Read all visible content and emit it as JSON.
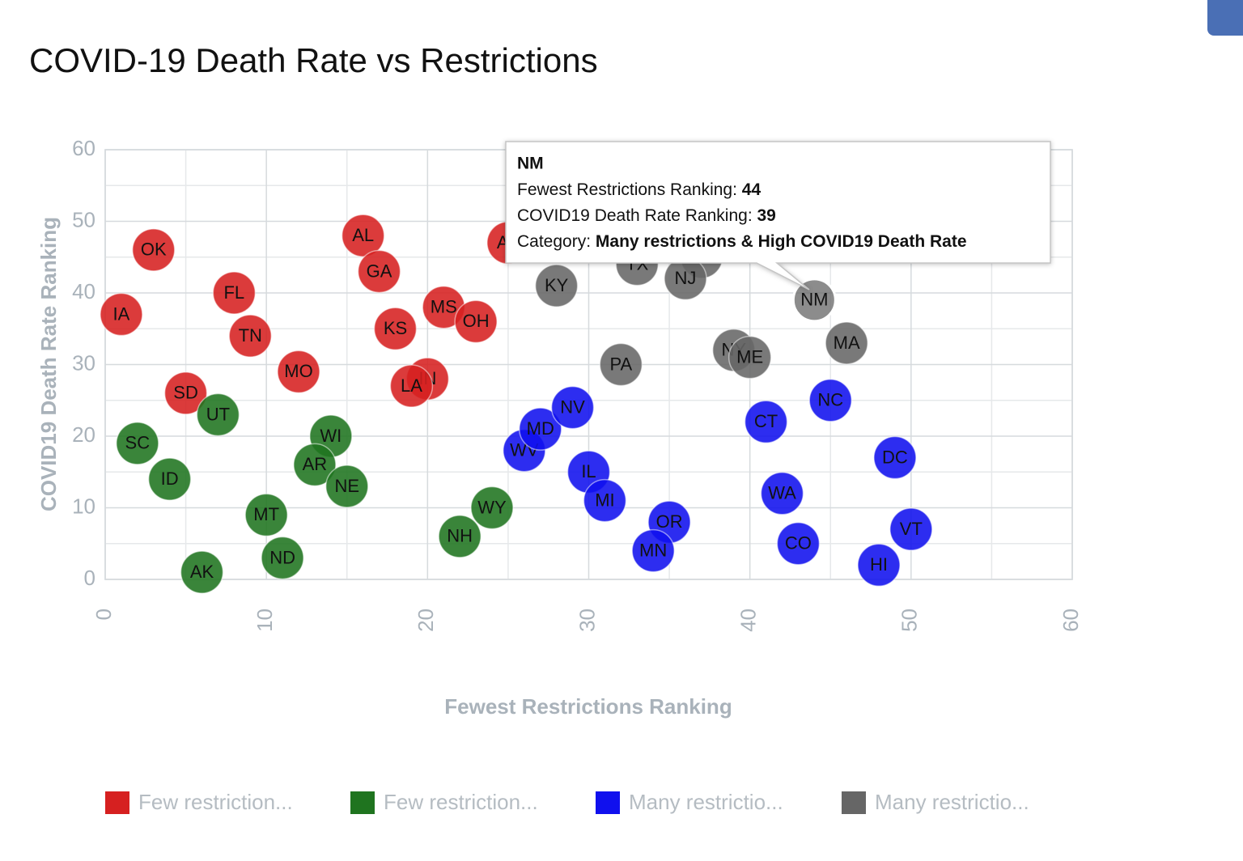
{
  "chart_data": {
    "type": "scatter",
    "title": "COVID-19 Death Rate vs Restrictions",
    "x_label": "Fewest Restrictions Ranking",
    "y_label": "COVID19 Death Rate Ranking",
    "xlim": [
      0,
      60
    ],
    "ylim": [
      0,
      60
    ],
    "xticks": [
      0,
      10,
      20,
      30,
      40,
      50,
      60
    ],
    "yticks": [
      0,
      10,
      20,
      30,
      40,
      50,
      60
    ],
    "grid": true,
    "series": [
      {
        "name": "Few restriction...",
        "color": "#d62020",
        "labels": [
          "OK",
          "IA",
          "FL",
          "TN",
          "MO",
          "SD",
          "AL",
          "GA",
          "KS",
          "MS",
          "OH",
          "IN",
          "LA",
          "AZ"
        ],
        "x": [
          3,
          1,
          8,
          9,
          12,
          5,
          16,
          17,
          18,
          21,
          23,
          20,
          19,
          25
        ],
        "values": [
          46,
          37,
          40,
          34,
          29,
          26,
          48,
          43,
          35,
          38,
          36,
          28,
          27,
          47
        ]
      },
      {
        "name": "Few restriction...",
        "color": "#1f741f",
        "labels": [
          "SC",
          "ID",
          "UT",
          "AK",
          "MT",
          "ND",
          "WI",
          "AR",
          "NE",
          "NH",
          "WY"
        ],
        "x": [
          2,
          4,
          7,
          6,
          10,
          11,
          14,
          13,
          15,
          22,
          24
        ],
        "values": [
          19,
          14,
          23,
          1,
          9,
          3,
          20,
          16,
          13,
          6,
          10
        ]
      },
      {
        "name": "Many restrictio...",
        "color": "#1010ee",
        "labels": [
          "WV",
          "MD",
          "NV",
          "IL",
          "MI",
          "OR",
          "MN",
          "CT",
          "NC",
          "WA",
          "CO",
          "DC",
          "VT",
          "HI"
        ],
        "x": [
          26,
          27,
          29,
          30,
          31,
          35,
          34,
          41,
          45,
          42,
          43,
          49,
          50,
          48
        ],
        "values": [
          18,
          21,
          24,
          15,
          11,
          8,
          4,
          22,
          25,
          12,
          5,
          17,
          7,
          2
        ]
      },
      {
        "name": "Many restrictio...",
        "color": "#666666",
        "labels": [
          "KY",
          "PA",
          "TX",
          "DE",
          "NJ",
          "NY",
          "ME",
          "NM",
          "MA"
        ],
        "x": [
          28,
          32,
          33,
          37,
          36,
          39,
          40,
          44,
          46
        ],
        "values": [
          41,
          30,
          44,
          45,
          42,
          32,
          31,
          39,
          33
        ]
      }
    ],
    "tooltip": {
      "title": "NM",
      "rows": [
        {
          "label": "Fewest Restrictions Ranking: ",
          "value": 44
        },
        {
          "label": "COVID19 Death Rate Ranking: ",
          "value": 39
        },
        {
          "label": "Category: ",
          "value": "Many restrictions & High COVID19 Death Rate"
        }
      ]
    }
  }
}
